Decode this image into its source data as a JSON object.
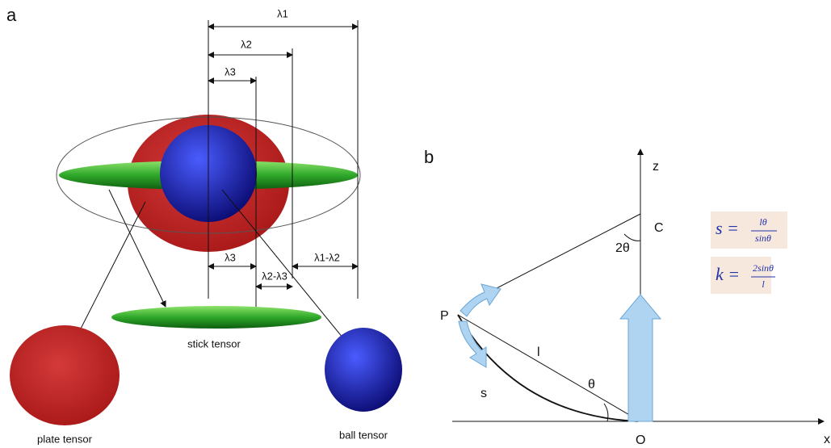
{
  "panel_a": {
    "label": "a",
    "l1": "λ1",
    "l2": "λ2",
    "l3": "λ3",
    "l3_lower": "λ3",
    "l2_l3": "λ2-λ3",
    "l1_l2": "λ1-λ2",
    "stick": "stick tensor",
    "plate": "plate tensor",
    "ball": "ball tensor"
  },
  "panel_b": {
    "label": "b",
    "z": "z",
    "x": "x",
    "C": "C",
    "angle2": "2θ",
    "P": "P",
    "l": "l",
    "s": "s",
    "theta": "θ",
    "O": "O",
    "formula_s": {
      "lhs": "s =",
      "num": "lθ",
      "den": "sinθ"
    },
    "formula_k": {
      "lhs": "k =",
      "num": "2sinθ",
      "den": "l"
    }
  }
}
